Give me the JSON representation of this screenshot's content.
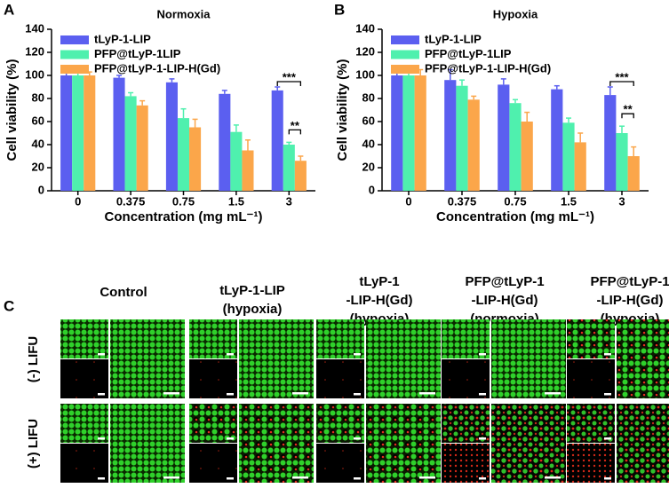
{
  "chart_data": [
    {
      "type": "bar",
      "panel": "A",
      "title": "Normoxia",
      "y_label": "Cell viability (%)",
      "x_label": "Concentration (mg mL⁻¹)",
      "categories": [
        "0",
        "0.375",
        "0.75",
        "1.5",
        "3"
      ],
      "series": [
        {
          "name": "tLyP-1-LIP",
          "color": "#5b5ff0",
          "values": [
            100,
            98,
            94,
            84,
            87
          ],
          "errors": [
            7,
            2,
            3,
            3,
            3
          ]
        },
        {
          "name": "PFP@tLyP-1LIP",
          "color": "#4ff0ae",
          "values": [
            100,
            82,
            63,
            51,
            40
          ],
          "errors": [
            3,
            3,
            8,
            6,
            2
          ]
        },
        {
          "name": "PFP@tLyP-1-LIP-H(Gd)",
          "color": "#fba64a",
          "values": [
            100,
            74,
            55,
            35,
            26
          ],
          "errors": [
            3,
            4,
            7,
            9,
            4
          ]
        }
      ],
      "ylim": [
        0,
        140
      ],
      "yticks": [
        0,
        20,
        40,
        60,
        80,
        100,
        120,
        140
      ],
      "annotations": [
        {
          "text": "***",
          "from": 0,
          "to": 2,
          "category": 4
        },
        {
          "text": "**",
          "from": 1,
          "to": 2,
          "category": 4
        }
      ]
    },
    {
      "type": "bar",
      "panel": "B",
      "title": "Hypoxia",
      "y_label": "Cell viability (%)",
      "x_label": "Concentration (mg mL⁻¹)",
      "categories": [
        "0",
        "0.375",
        "0.75",
        "1.5",
        "3"
      ],
      "series": [
        {
          "name": "tLyP-1-LIP",
          "color": "#5b5ff0",
          "values": [
            100,
            96,
            92,
            88,
            83
          ],
          "errors": [
            8,
            9,
            5,
            3,
            7
          ]
        },
        {
          "name": "PFP@tLyP-1LIP",
          "color": "#4ff0ae",
          "values": [
            100,
            91,
            76,
            59,
            50
          ],
          "errors": [
            5,
            5,
            3,
            4,
            6
          ]
        },
        {
          "name": "PFP@tLyP-1-LIP-H(Gd)",
          "color": "#fba64a",
          "values": [
            100,
            79,
            60,
            42,
            30
          ],
          "errors": [
            5,
            3,
            8,
            8,
            8
          ]
        }
      ],
      "ylim": [
        0,
        140
      ],
      "yticks": [
        0,
        20,
        40,
        60,
        80,
        100,
        120,
        140
      ],
      "annotations": [
        {
          "text": "***",
          "from": 0,
          "to": 2,
          "category": 4
        },
        {
          "text": "**",
          "from": 1,
          "to": 2,
          "category": 4
        }
      ]
    }
  ],
  "panel_c": {
    "label": "C",
    "columns": [
      [
        "Control"
      ],
      [
        "tLyP-1-LIP",
        "(hypoxia)"
      ],
      [
        "tLyP-1",
        "-LIP-H(Gd)",
        "(hypoxia)"
      ],
      [
        "PFP@tLyP-1",
        "-LIP-H(Gd)",
        "(normoxia)"
      ],
      [
        "PFP@tLyP-1",
        "-LIP-H(Gd)",
        "(hypoxia)"
      ]
    ],
    "rows": [
      "(-) LIFU",
      "(+) LIFU"
    ]
  }
}
